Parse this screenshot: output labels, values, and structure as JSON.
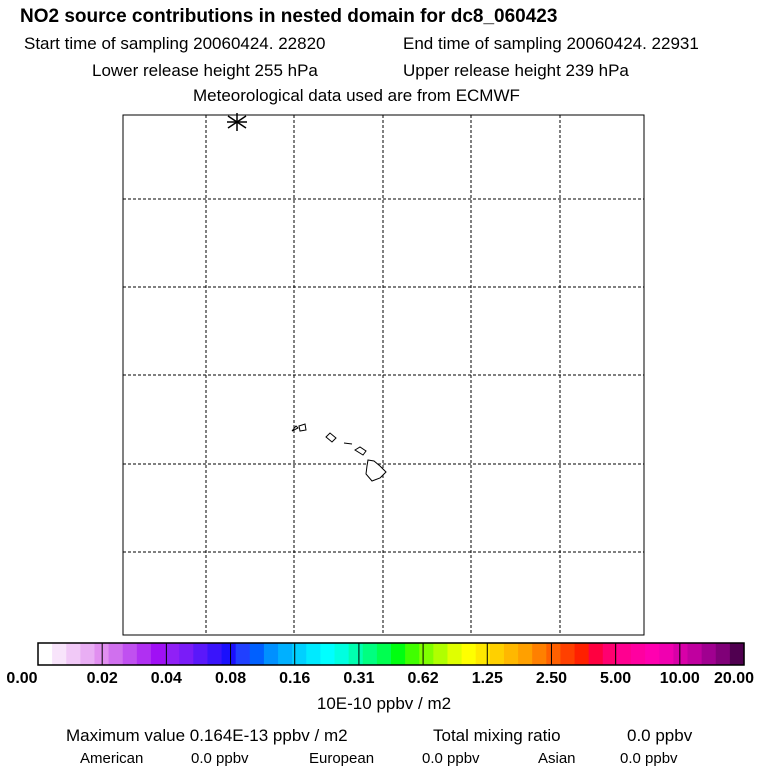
{
  "header": {
    "title": "NO2 source contributions in nested domain for dc8_060423",
    "start_time": "Start time of sampling 20060424. 22820",
    "end_time": "End time of sampling 20060424. 22931",
    "lower_release": "Lower release height  255 hPa",
    "upper_release": "Upper release height  239 hPa",
    "met_data": "Meteorological data used are from ECMWF"
  },
  "map": {
    "features": [
      "coastline",
      "dashed-gridlines",
      "release-marker"
    ],
    "marker_symbol": "asterisk"
  },
  "colorbar": {
    "colors": [
      "#ffffff",
      "#f8e4fb",
      "#f1c9f7",
      "#e9aef4",
      "#e18ff0",
      "#d070ee",
      "#c050f0",
      "#b030f2",
      "#a010f5",
      "#9020f6",
      "#7a1cf8",
      "#5a18fa",
      "#3a14fb",
      "#1a10fd",
      "#2040ff",
      "#0060ff",
      "#0090ff",
      "#00b0ff",
      "#00d0ff",
      "#00eaff",
      "#00ffff",
      "#00ffe0",
      "#00ffb0",
      "#00ff80",
      "#00ff50",
      "#00ff10",
      "#40ff00",
      "#80ff00",
      "#b0ff00",
      "#e0ff00",
      "#ffff00",
      "#ffe800",
      "#ffd000",
      "#ffb800",
      "#ffa000",
      "#ff8000",
      "#ff6000",
      "#ff4000",
      "#ff2000",
      "#ff0040",
      "#ff0070",
      "#ff0090",
      "#ff00a0",
      "#ff00b0",
      "#f000b0",
      "#d800a8",
      "#c0009f",
      "#a00090",
      "#800078",
      "#500050"
    ],
    "labels": [
      "0.00",
      "0.02",
      "0.04",
      "0.08",
      "0.16",
      "0.31",
      "0.62",
      "1.25",
      "2.50",
      "5.00",
      "10.00",
      "20.00"
    ],
    "units": "10E-10 ppbv / m2"
  },
  "footer": {
    "max_value": "Maximum value  0.164E-13 ppbv / m2",
    "total_mixing": "Total mixing ratio",
    "total_mixing_value": "0.0 ppbv",
    "american_label": "American",
    "american_value": "0.0 ppbv",
    "european_label": "European",
    "european_value": "0.0 ppbv",
    "asian_label": "Asian",
    "asian_value": "0.0 ppbv"
  }
}
